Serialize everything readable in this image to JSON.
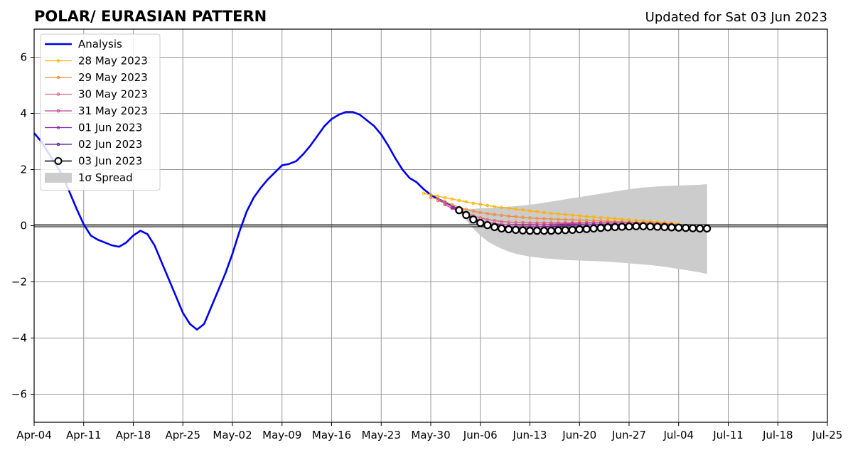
{
  "chart_data": {
    "type": "line",
    "title": "POLAR/ EURASIAN  PATTERN",
    "subtitle": "Updated for Sat 03 Jun 2023",
    "xlabel": "",
    "ylabel": "",
    "x_start": "2023-04-04",
    "x_end": "2023-07-25",
    "ylim": [
      -7,
      7
    ],
    "yticks": [
      -6,
      -4,
      -2,
      0,
      2,
      4,
      6
    ],
    "xtick_labels": [
      "Apr-04",
      "Apr-11",
      "Apr-18",
      "Apr-25",
      "May-02",
      "May-09",
      "May-16",
      "May-23",
      "May-30",
      "Jun-06",
      "Jun-13",
      "Jun-20",
      "Jun-27",
      "Jul-04",
      "Jul-11",
      "Jul-18",
      "Jul-25"
    ],
    "xtick_dates": [
      "2023-04-04",
      "2023-04-11",
      "2023-04-18",
      "2023-04-25",
      "2023-05-02",
      "2023-05-09",
      "2023-05-16",
      "2023-05-23",
      "2023-05-30",
      "2023-06-06",
      "2023-06-13",
      "2023-06-20",
      "2023-06-27",
      "2023-07-04",
      "2023-07-11",
      "2023-07-18",
      "2023-07-25"
    ],
    "grid": true,
    "legend_position": "top-left",
    "zero_line": true,
    "analysis": {
      "name": "Analysis",
      "color": "#0000ee",
      "dates": [
        "2023-04-04",
        "2023-04-05",
        "2023-04-06",
        "2023-04-07",
        "2023-04-08",
        "2023-04-09",
        "2023-04-10",
        "2023-04-11",
        "2023-04-12",
        "2023-04-13",
        "2023-04-14",
        "2023-04-15",
        "2023-04-16",
        "2023-04-17",
        "2023-04-18",
        "2023-04-19",
        "2023-04-20",
        "2023-04-21",
        "2023-04-22",
        "2023-04-23",
        "2023-04-24",
        "2023-04-25",
        "2023-04-26",
        "2023-04-27",
        "2023-04-28",
        "2023-04-29",
        "2023-04-30",
        "2023-05-01",
        "2023-05-02",
        "2023-05-03",
        "2023-05-04",
        "2023-05-05",
        "2023-05-06",
        "2023-05-07",
        "2023-05-08",
        "2023-05-09",
        "2023-05-10",
        "2023-05-11",
        "2023-05-12",
        "2023-05-13",
        "2023-05-14",
        "2023-05-15",
        "2023-05-16",
        "2023-05-17",
        "2023-05-18",
        "2023-05-19",
        "2023-05-20",
        "2023-05-21",
        "2023-05-22",
        "2023-05-23",
        "2023-05-24",
        "2023-05-25",
        "2023-05-26",
        "2023-05-27",
        "2023-05-28",
        "2023-05-29",
        "2023-05-30",
        "2023-05-31",
        "2023-06-01",
        "2023-06-02",
        "2023-06-03"
      ],
      "values": [
        3.3,
        3.0,
        2.6,
        2.2,
        1.8,
        1.2,
        0.6,
        0.05,
        -0.35,
        -0.5,
        -0.6,
        -0.7,
        -0.75,
        -0.6,
        -0.35,
        -0.18,
        -0.3,
        -0.7,
        -1.3,
        -1.9,
        -2.5,
        -3.1,
        -3.5,
        -3.7,
        -3.5,
        -2.9,
        -2.3,
        -1.7,
        -1.0,
        -0.2,
        0.5,
        1.0,
        1.35,
        1.65,
        1.9,
        2.15,
        2.2,
        2.3,
        2.55,
        2.85,
        3.2,
        3.55,
        3.8,
        3.95,
        4.05,
        4.05,
        3.95,
        3.75,
        3.55,
        3.25,
        2.85,
        2.4,
        2.0,
        1.7,
        1.55,
        1.3,
        1.1,
        0.95,
        0.85,
        0.7,
        0.55
      ]
    },
    "forecasts": [
      {
        "name": "28 May 2023",
        "color": "#ffb000",
        "start": "2023-05-29",
        "values": [
          1.15,
          1.1,
          1.05,
          1.0,
          0.95,
          0.9,
          0.85,
          0.8,
          0.76,
          0.72,
          0.68,
          0.65,
          0.62,
          0.59,
          0.56,
          0.53,
          0.5,
          0.47,
          0.44,
          0.42,
          0.4,
          0.38,
          0.35,
          0.33,
          0.31,
          0.29,
          0.27,
          0.25,
          0.23,
          0.21,
          0.19,
          0.17,
          0.15,
          0.13,
          0.11,
          0.09,
          0.07
        ]
      },
      {
        "name": "29 May 2023",
        "color": "#f08a3a",
        "start": "2023-05-30",
        "values": [
          1.0,
          0.95,
          0.85,
          0.75,
          0.65,
          0.58,
          0.52,
          0.47,
          0.43,
          0.4,
          0.37,
          0.34,
          0.32,
          0.3,
          0.28,
          0.26,
          0.25,
          0.24,
          0.23,
          0.22,
          0.21,
          0.2,
          0.19,
          0.18,
          0.17,
          0.16,
          0.15,
          0.14,
          0.13,
          0.12,
          0.11,
          0.1,
          0.09,
          0.08,
          0.07
        ]
      },
      {
        "name": "30 May 2023",
        "color": "#e0607a",
        "start": "2023-05-31",
        "values": [
          0.9,
          0.8,
          0.68,
          0.55,
          0.45,
          0.35,
          0.28,
          0.22,
          0.18,
          0.15,
          0.13,
          0.12,
          0.11,
          0.1,
          0.1,
          0.1,
          0.1,
          0.1,
          0.1,
          0.1,
          0.1,
          0.1,
          0.1,
          0.1,
          0.1,
          0.1,
          0.1,
          0.1,
          0.1,
          0.09,
          0.08,
          0.07,
          0.06,
          0.05
        ]
      },
      {
        "name": "31 May 2023",
        "color": "#c0409a",
        "start": "2023-06-01",
        "values": [
          0.75,
          0.62,
          0.5,
          0.38,
          0.27,
          0.18,
          0.12,
          0.08,
          0.05,
          0.03,
          0.02,
          0.02,
          0.02,
          0.03,
          0.04,
          0.05,
          0.06,
          0.07,
          0.08,
          0.09,
          0.1,
          0.1,
          0.1,
          0.1,
          0.1,
          0.1,
          0.1,
          0.09,
          0.08,
          0.07,
          0.06,
          0.05,
          0.04
        ]
      },
      {
        "name": "01 Jun 2023",
        "color": "#8a1fa8",
        "start": "2023-06-02",
        "values": [
          0.65,
          0.52,
          0.38,
          0.25,
          0.15,
          0.07,
          0.02,
          -0.02,
          -0.04,
          -0.05,
          -0.05,
          -0.05,
          -0.04,
          -0.03,
          -0.02,
          -0.01,
          0.0,
          0.01,
          0.02,
          0.03,
          0.04,
          0.05,
          0.05,
          0.05,
          0.05,
          0.05,
          0.04,
          0.03,
          0.02,
          0.01,
          0.0,
          -0.01
        ]
      },
      {
        "name": "02 Jun 2023",
        "color": "#4b1390",
        "start": "2023-06-03",
        "values": [
          0.58,
          0.42,
          0.28,
          0.15,
          0.05,
          -0.03,
          -0.08,
          -0.11,
          -0.13,
          -0.14,
          -0.14,
          -0.14,
          -0.13,
          -0.12,
          -0.11,
          -0.1,
          -0.09,
          -0.08,
          -0.07,
          -0.06,
          -0.05,
          -0.04,
          -0.03,
          -0.02,
          -0.02,
          -0.02,
          -0.02,
          -0.03,
          -0.04,
          -0.05,
          -0.06
        ]
      },
      {
        "name": "03 Jun 2023",
        "color": "#000000",
        "start": "2023-06-03",
        "values": [
          0.55,
          0.38,
          0.22,
          0.1,
          0.02,
          -0.05,
          -0.1,
          -0.13,
          -0.15,
          -0.17,
          -0.18,
          -0.18,
          -0.18,
          -0.18,
          -0.17,
          -0.16,
          -0.15,
          -0.13,
          -0.12,
          -0.1,
          -0.08,
          -0.06,
          -0.05,
          -0.04,
          -0.03,
          -0.02,
          -0.02,
          -0.03,
          -0.04,
          -0.05,
          -0.06,
          -0.07,
          -0.08,
          -0.09,
          -0.1,
          -0.1
        ]
      }
    ],
    "spread": {
      "name": "1σ Spread",
      "color": "#cccccc",
      "start": "2023-06-03",
      "upper": [
        0.6,
        0.6,
        0.6,
        0.62,
        0.63,
        0.64,
        0.66,
        0.68,
        0.7,
        0.72,
        0.75,
        0.78,
        0.82,
        0.86,
        0.9,
        0.94,
        0.98,
        1.02,
        1.06,
        1.1,
        1.14,
        1.18,
        1.22,
        1.26,
        1.3,
        1.33,
        1.36,
        1.38,
        1.4,
        1.41,
        1.42,
        1.43,
        1.44,
        1.45,
        1.46,
        1.48
      ],
      "lower": [
        0.5,
        0.2,
        -0.1,
        -0.35,
        -0.55,
        -0.7,
        -0.82,
        -0.92,
        -1.0,
        -1.05,
        -1.1,
        -1.13,
        -1.16,
        -1.18,
        -1.2,
        -1.22,
        -1.23,
        -1.24,
        -1.25,
        -1.26,
        -1.27,
        -1.28,
        -1.3,
        -1.32,
        -1.34,
        -1.36,
        -1.38,
        -1.4,
        -1.43,
        -1.46,
        -1.5,
        -1.54,
        -1.58,
        -1.62,
        -1.66,
        -1.72
      ]
    }
  }
}
